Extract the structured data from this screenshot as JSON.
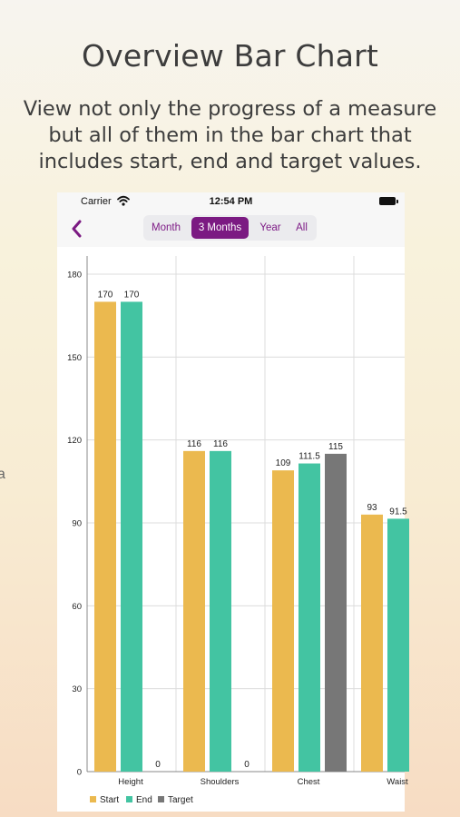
{
  "promo": {
    "title": "Overview Bar Chart",
    "subtitle": "View not only the progress of a measure but all of them in the bar chart that includes start, end and target values."
  },
  "side_glyph": "a",
  "status_bar": {
    "carrier": "Carrier",
    "time": "12:54 PM",
    "icons": [
      "wifi-icon",
      "battery-icon"
    ]
  },
  "nav": {
    "back_icon": "chevron-left-icon",
    "segments": [
      {
        "label": "Month",
        "selected": false
      },
      {
        "label": "3 Months",
        "selected": true
      },
      {
        "label": "Year",
        "selected": false
      },
      {
        "label": "All",
        "selected": false
      }
    ]
  },
  "colors": {
    "accent": "#7b1a82",
    "start": "#ebb94f",
    "end": "#43c4a2",
    "target": "#777777"
  },
  "chart_data": {
    "type": "bar",
    "categories": [
      "Height",
      "Shoulders",
      "Chest",
      "Waist"
    ],
    "series": [
      {
        "name": "Start",
        "values": [
          170,
          116,
          109,
          93
        ]
      },
      {
        "name": "End",
        "values": [
          170,
          116,
          111.5,
          91.5
        ]
      },
      {
        "name": "Target",
        "values": [
          0,
          0,
          115,
          null
        ]
      }
    ],
    "data_labels": [
      [
        "170",
        "170",
        "0"
      ],
      [
        "116",
        "116",
        "0"
      ],
      [
        "109",
        "111.5",
        "115"
      ],
      [
        "93",
        "91.5",
        ""
      ]
    ],
    "yticks": [
      "0",
      "30",
      "60",
      "90",
      "120",
      "150",
      "180"
    ],
    "ylim": [
      0,
      180
    ],
    "grid": true,
    "legend": {
      "placement": "bottom-left",
      "entries": [
        "Start",
        "End",
        "Target"
      ]
    },
    "xlabel": "",
    "ylabel": "",
    "title": ""
  }
}
